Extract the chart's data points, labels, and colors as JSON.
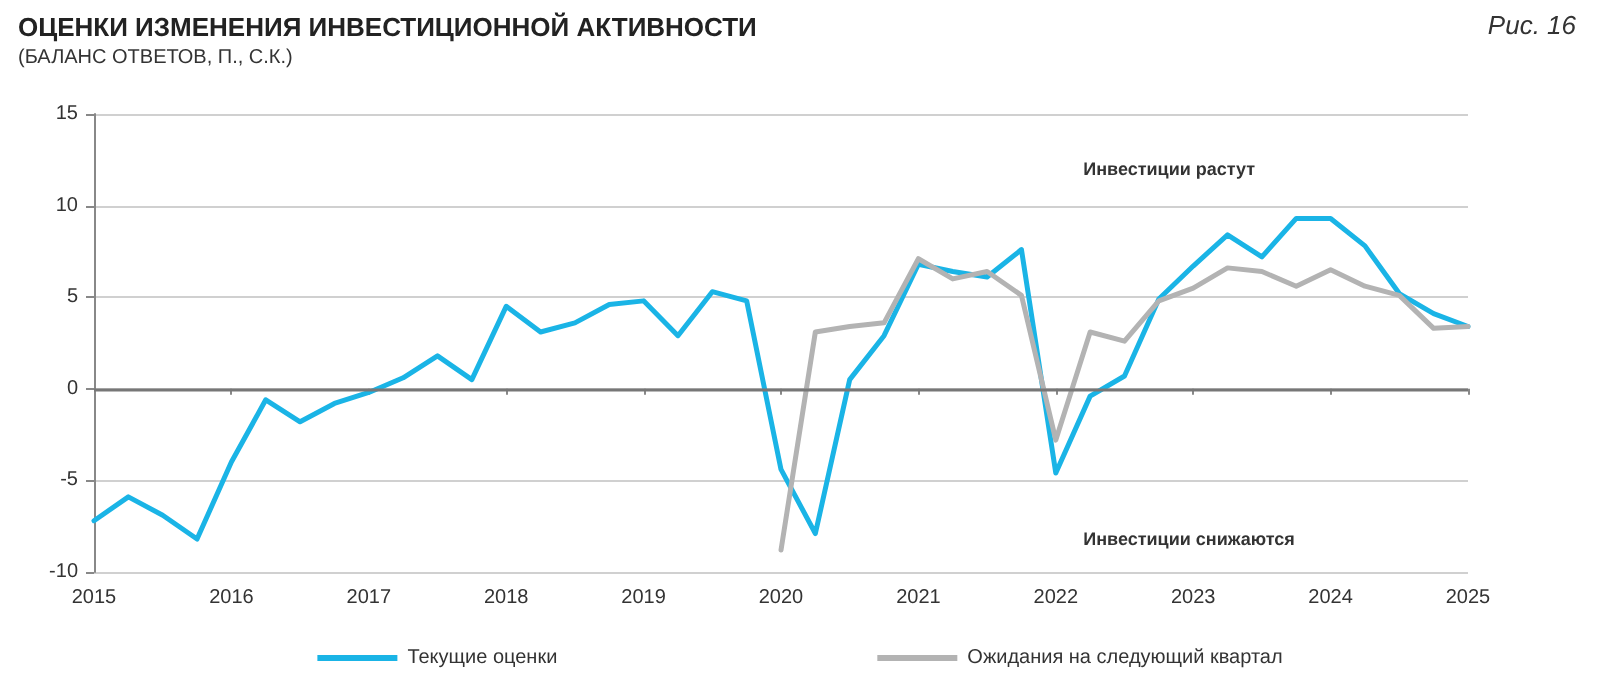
{
  "chart_data": {
    "type": "line",
    "title": "ОЦЕНКИ ИЗМЕНЕНИЯ ИНВЕСТИЦИОННОЙ АКТИВНОСТИ",
    "subtitle": "(БАЛАНС ОТВЕТОВ, П., С.К.)",
    "annotations": [
      "Рис. 16",
      "Инвестиции растут",
      "Инвестиции снижаются"
    ],
    "series": [
      {
        "name": "Текущие оценки",
        "color": "#1ab4e6",
        "x": [
          2015,
          2015.25,
          2015.5,
          2015.75,
          2016,
          2016.25,
          2016.5,
          2016.75,
          2017,
          2017.25,
          2017.5,
          2017.75,
          2018,
          2018.25,
          2018.5,
          2018.75,
          2019,
          2019.25,
          2019.5,
          2019.75,
          2020,
          2020.25,
          2020.5,
          2020.75,
          2021,
          2021.25,
          2021.5,
          2021.75,
          2022,
          2022.25,
          2022.5,
          2022.75,
          2023,
          2023.25,
          2023.5,
          2023.75,
          2024,
          2024.25,
          2024.5,
          2024.75,
          2025
        ],
        "values": [
          -7.2,
          -5.9,
          -6.9,
          -8.2,
          -4,
          -0.6,
          -1.8,
          -0.8,
          -0.2,
          0.6,
          1.8,
          0.5,
          4.5,
          3.1,
          3.6,
          4.6,
          4.8,
          2.9,
          5.3,
          4.8,
          -4.4,
          -7.9,
          0.5,
          2.9,
          6.8,
          6.4,
          6.1,
          7.6,
          -4.6,
          -0.4,
          0.7,
          4.9,
          6.7,
          8.4,
          7.2,
          9.3,
          9.3,
          7.8,
          5.2,
          4.1,
          3.4
        ]
      },
      {
        "name": "Ожидания на следующий квартал",
        "color": "#b3b3b3",
        "x": [
          2020,
          2020.25,
          2020.5,
          2020.75,
          2021,
          2021.25,
          2021.5,
          2021.75,
          2022,
          2022.25,
          2022.5,
          2022.75,
          2023,
          2023.25,
          2023.5,
          2023.75,
          2024,
          2024.25,
          2024.5,
          2024.75,
          2025
        ],
        "values": [
          -8.8,
          3.1,
          3.4,
          3.6,
          7.1,
          6.0,
          6.4,
          5.1,
          -2.8,
          3.1,
          2.6,
          4.8,
          5.5,
          6.6,
          6.4,
          5.6,
          6.5,
          5.6,
          5.1,
          3.3,
          3.4
        ]
      }
    ],
    "xlim": [
      2015,
      2025
    ],
    "xticks": [
      2015,
      2016,
      2017,
      2018,
      2019,
      2020,
      2021,
      2022,
      2023,
      2024,
      2025
    ],
    "ylim": [
      -10,
      15
    ],
    "yticks": [
      -10,
      -5,
      0,
      5,
      10,
      15
    ],
    "grid": "y",
    "legend": "bottom",
    "marker": "none",
    "line_style": "solid"
  }
}
